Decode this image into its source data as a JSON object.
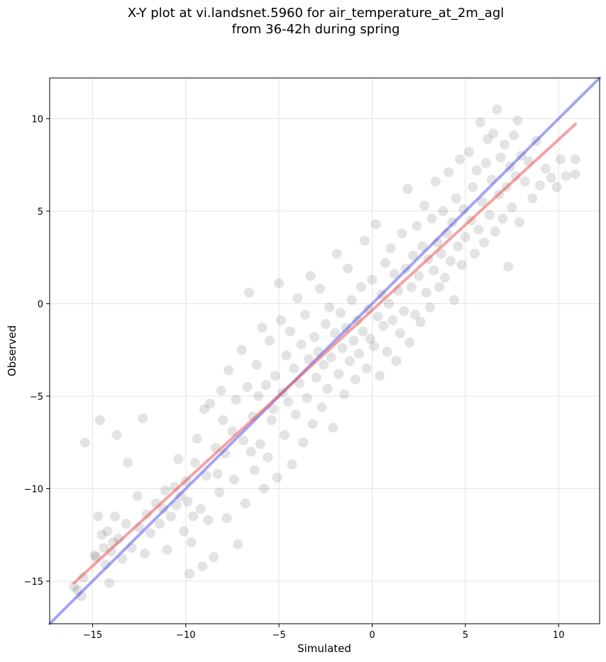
{
  "chart_data": {
    "type": "scatter",
    "title_line1": "X-Y plot at vi.landsnet.5960 for air_temperature_at_2m_agl",
    "title_line2": "from 36-42h during spring",
    "xlabel": "Simulated",
    "ylabel": "Observed",
    "xlim": [
      -17.3,
      12.2
    ],
    "ylim": [
      -17.3,
      12.2
    ],
    "xticks": [
      -15,
      -10,
      -5,
      0,
      5,
      10
    ],
    "yticks": [
      -15,
      -10,
      -5,
      0,
      5,
      10
    ],
    "xtick_labels": [
      "−15",
      "−10",
      "−5",
      "0",
      "5",
      "10"
    ],
    "ytick_labels": [
      "−15",
      "−10",
      "−5",
      "0",
      "5",
      "10"
    ],
    "grid": true,
    "point_color": "#000000",
    "one_to_one_line": {
      "color": "#4a4aee",
      "x": [
        -17.3,
        12.2
      ],
      "y": [
        -17.3,
        12.2
      ]
    },
    "fit_line": {
      "color": "#ee5555",
      "x": [
        -16.0,
        10.9
      ],
      "y": [
        -15.1,
        9.7
      ]
    },
    "points": [
      [
        -16.0,
        -15.3
      ],
      [
        -15.8,
        -15.5
      ],
      [
        -15.6,
        -15.8
      ],
      [
        -15.5,
        -14.8
      ],
      [
        -15.4,
        -7.5
      ],
      [
        -14.9,
        -13.6
      ],
      [
        -14.8,
        -13.7
      ],
      [
        -14.7,
        -11.5
      ],
      [
        -14.6,
        -6.3
      ],
      [
        -14.5,
        -12.5
      ],
      [
        -14.4,
        -13.2
      ],
      [
        -14.3,
        -14.1
      ],
      [
        -14.2,
        -12.3
      ],
      [
        -14.1,
        -15.1
      ],
      [
        -14.0,
        -13.4
      ],
      [
        -13.9,
        -12.9
      ],
      [
        -13.8,
        -11.5
      ],
      [
        -13.7,
        -7.1
      ],
      [
        -13.6,
        -12.7
      ],
      [
        -13.4,
        -13.8
      ],
      [
        -13.2,
        -11.9
      ],
      [
        -13.1,
        -8.6
      ],
      [
        -12.9,
        -13.2
      ],
      [
        -12.6,
        -10.4
      ],
      [
        -12.5,
        -12.1
      ],
      [
        -12.3,
        -6.2
      ],
      [
        -12.2,
        -13.5
      ],
      [
        -12.1,
        -11.4
      ],
      [
        -11.9,
        -12.4
      ],
      [
        -11.6,
        -10.8
      ],
      [
        -11.4,
        -11.9
      ],
      [
        -11.2,
        -11.1
      ],
      [
        -11.1,
        -10.1
      ],
      [
        -11.0,
        -13.3
      ],
      [
        -10.8,
        -11.5
      ],
      [
        -10.6,
        -9.9
      ],
      [
        -10.5,
        -10.9
      ],
      [
        -10.4,
        -8.4
      ],
      [
        -10.3,
        -10.4
      ],
      [
        -10.1,
        -12.3
      ],
      [
        -10.0,
        -9.6
      ],
      [
        -9.9,
        -10.7
      ],
      [
        -9.8,
        -14.6
      ],
      [
        -9.7,
        -12.9
      ],
      [
        -9.6,
        -11.5
      ],
      [
        -9.5,
        -8.6
      ],
      [
        -9.4,
        -7.3
      ],
      [
        -9.2,
        -11.1
      ],
      [
        -9.1,
        -14.2
      ],
      [
        -9.0,
        -5.7
      ],
      [
        -8.9,
        -9.3
      ],
      [
        -8.8,
        -11.7
      ],
      [
        -8.7,
        -5.4
      ],
      [
        -8.5,
        -13.7
      ],
      [
        -8.4,
        -7.8
      ],
      [
        -8.3,
        -9.2
      ],
      [
        -8.2,
        -10.2
      ],
      [
        -8.1,
        -4.7
      ],
      [
        -8.0,
        -6.3
      ],
      [
        -7.9,
        -8.1
      ],
      [
        -7.8,
        -11.6
      ],
      [
        -7.7,
        -3.6
      ],
      [
        -7.5,
        -6.9
      ],
      [
        -7.4,
        -9.5
      ],
      [
        -7.3,
        -5.2
      ],
      [
        -7.2,
        -13.0
      ],
      [
        -7.0,
        -2.5
      ],
      [
        -6.9,
        -7.4
      ],
      [
        -6.8,
        -10.8
      ],
      [
        -6.7,
        -4.5
      ],
      [
        -6.6,
        0.6
      ],
      [
        -6.5,
        -8.0
      ],
      [
        -6.4,
        -6.1
      ],
      [
        -6.3,
        -9.0
      ],
      [
        -6.2,
        -3.3
      ],
      [
        -6.1,
        -5.0
      ],
      [
        -6.0,
        -7.6
      ],
      [
        -5.9,
        -1.3
      ],
      [
        -5.8,
        -10.0
      ],
      [
        -5.7,
        -4.4
      ],
      [
        -5.6,
        -8.3
      ],
      [
        -5.5,
        -2.0
      ],
      [
        -5.4,
        -6.3
      ],
      [
        -5.3,
        -5.7
      ],
      [
        -5.2,
        -3.9
      ],
      [
        -5.1,
        -9.4
      ],
      [
        -5.0,
        1.1
      ],
      [
        -4.9,
        -0.9
      ],
      [
        -4.8,
        -4.8
      ],
      [
        -4.7,
        -7.1
      ],
      [
        -4.6,
        -2.8
      ],
      [
        -4.5,
        -5.3
      ],
      [
        -4.4,
        -1.5
      ],
      [
        -4.3,
        -8.7
      ],
      [
        -4.2,
        -3.5
      ],
      [
        -4.1,
        -6.0
      ],
      [
        -4.0,
        0.3
      ],
      [
        -3.9,
        -4.3
      ],
      [
        -3.8,
        -2.2
      ],
      [
        -3.7,
        -7.5
      ],
      [
        -3.6,
        -0.6
      ],
      [
        -3.5,
        -5.1
      ],
      [
        -3.4,
        -3.0
      ],
      [
        -3.3,
        1.5
      ],
      [
        -3.2,
        -6.5
      ],
      [
        -3.1,
        -1.8
      ],
      [
        -3.0,
        -4.0
      ],
      [
        -2.9,
        -2.6
      ],
      [
        -2.8,
        0.8
      ],
      [
        -2.7,
        -5.6
      ],
      [
        -2.6,
        -3.3
      ],
      [
        -2.5,
        -1.1
      ],
      [
        -2.4,
        -4.6
      ],
      [
        -2.3,
        -0.2
      ],
      [
        -2.2,
        -2.9
      ],
      [
        -2.1,
        -6.7
      ],
      [
        -2.0,
        -1.6
      ],
      [
        -1.9,
        2.7
      ],
      [
        -1.8,
        -3.8
      ],
      [
        -1.7,
        -0.5
      ],
      [
        -1.6,
        -2.4
      ],
      [
        -1.5,
        -4.9
      ],
      [
        -1.4,
        -1.3
      ],
      [
        -1.3,
        1.9
      ],
      [
        -1.2,
        -3.1
      ],
      [
        -1.1,
        0.2
      ],
      [
        -1.0,
        -2.0
      ],
      [
        -0.9,
        -4.1
      ],
      [
        -0.8,
        -0.9
      ],
      [
        -0.7,
        -2.7
      ],
      [
        -0.6,
        0.9
      ],
      [
        -0.5,
        -1.5
      ],
      [
        -0.4,
        3.4
      ],
      [
        -0.3,
        -3.5
      ],
      [
        -0.2,
        -0.3
      ],
      [
        -0.1,
        -1.9
      ],
      [
        0.0,
        1.3
      ],
      [
        0.1,
        -2.3
      ],
      [
        0.2,
        4.3
      ],
      [
        0.3,
        -0.7
      ],
      [
        0.4,
        -3.9
      ],
      [
        0.5,
        0.5
      ],
      [
        0.6,
        -1.2
      ],
      [
        0.7,
        2.2
      ],
      [
        0.8,
        -2.6
      ],
      [
        0.9,
        0.0
      ],
      [
        1.0,
        3.0
      ],
      [
        1.1,
        -0.9
      ],
      [
        1.2,
        1.6
      ],
      [
        1.3,
        -3.1
      ],
      [
        1.4,
        0.7
      ],
      [
        1.5,
        -1.6
      ],
      [
        1.6,
        3.8
      ],
      [
        1.7,
        -0.4
      ],
      [
        1.8,
        1.9
      ],
      [
        1.9,
        6.2
      ],
      [
        2.0,
        -2.1
      ],
      [
        2.1,
        0.9
      ],
      [
        2.2,
        2.6
      ],
      [
        2.3,
        -0.6
      ],
      [
        2.4,
        4.2
      ],
      [
        2.5,
        1.5
      ],
      [
        2.6,
        -1.0
      ],
      [
        2.7,
        3.1
      ],
      [
        2.8,
        5.3
      ],
      [
        2.9,
        0.6
      ],
      [
        3.0,
        2.4
      ],
      [
        3.1,
        -0.2
      ],
      [
        3.2,
        4.6
      ],
      [
        3.3,
        1.8
      ],
      [
        3.4,
        6.6
      ],
      [
        3.5,
        3.3
      ],
      [
        3.6,
        0.9
      ],
      [
        3.7,
        2.7
      ],
      [
        3.8,
        5.0
      ],
      [
        3.9,
        1.4
      ],
      [
        4.0,
        3.8
      ],
      [
        4.1,
        7.1
      ],
      [
        4.2,
        2.3
      ],
      [
        4.3,
        4.4
      ],
      [
        4.4,
        0.2
      ],
      [
        4.5,
        5.7
      ],
      [
        4.6,
        3.1
      ],
      [
        4.7,
        7.8
      ],
      [
        4.8,
        2.1
      ],
      [
        4.9,
        5.1
      ],
      [
        5.0,
        3.6
      ],
      [
        5.2,
        8.2
      ],
      [
        5.3,
        4.5
      ],
      [
        5.4,
        6.3
      ],
      [
        5.5,
        2.7
      ],
      [
        5.6,
        7.2
      ],
      [
        5.7,
        4.0
      ],
      [
        5.8,
        9.8
      ],
      [
        5.9,
        5.5
      ],
      [
        6.0,
        3.3
      ],
      [
        6.1,
        7.6
      ],
      [
        6.2,
        8.9
      ],
      [
        6.3,
        4.8
      ],
      [
        6.4,
        6.7
      ],
      [
        6.5,
        9.2
      ],
      [
        6.6,
        3.9
      ],
      [
        6.7,
        10.5
      ],
      [
        6.8,
        5.9
      ],
      [
        6.9,
        7.9
      ],
      [
        7.0,
        4.6
      ],
      [
        7.1,
        8.6
      ],
      [
        7.2,
        6.3
      ],
      [
        7.3,
        2.0
      ],
      [
        7.4,
        7.4
      ],
      [
        7.5,
        5.2
      ],
      [
        7.6,
        9.1
      ],
      [
        7.7,
        6.9
      ],
      [
        7.8,
        9.9
      ],
      [
        7.9,
        4.4
      ],
      [
        8.0,
        8.0
      ],
      [
        8.2,
        6.6
      ],
      [
        8.4,
        7.7
      ],
      [
        8.6,
        5.7
      ],
      [
        8.8,
        8.8
      ],
      [
        9.0,
        6.4
      ],
      [
        9.3,
        7.3
      ],
      [
        9.6,
        6.8
      ],
      [
        9.9,
        6.3
      ],
      [
        10.1,
        7.8
      ],
      [
        10.4,
        6.9
      ],
      [
        10.9,
        7.0
      ],
      [
        10.9,
        7.8
      ]
    ]
  }
}
